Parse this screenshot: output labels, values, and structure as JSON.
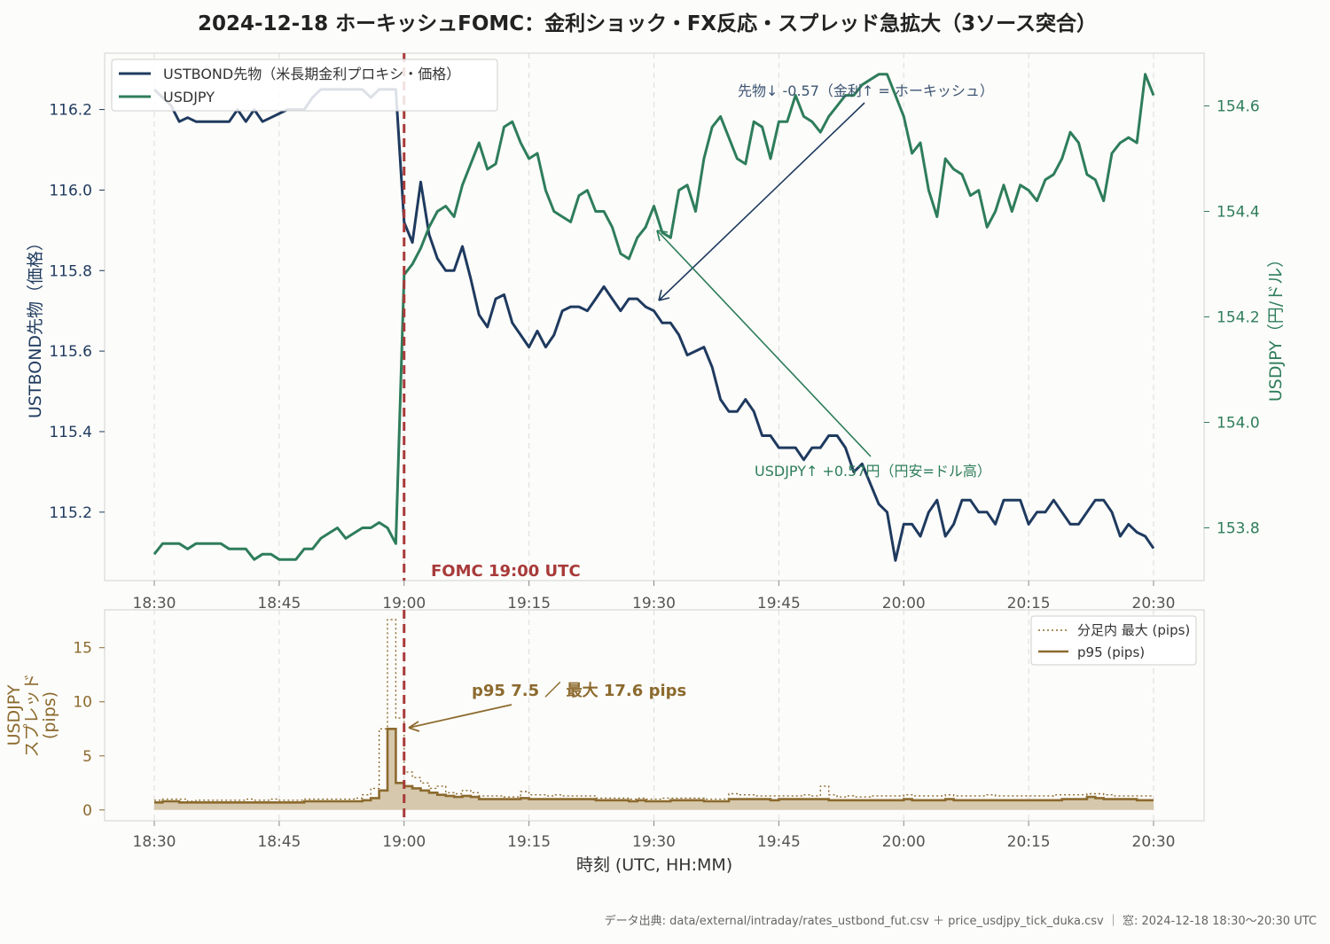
{
  "chart_data": {
    "title": "2024-12-18 ホーキッシュFOMC：金利ショック・FX反応・スプレッド急拡大（3ソース突合）",
    "source_note": "データ出典: data/external/intraday/rates_ustbond_fut.csv ＋ price_usdjpy_tick_duka.csv ｜ 窓: 2024-12-18 18:30〜20:30 UTC",
    "xlabel": "時刻 (UTC, HH:MM)",
    "x_ticks": [
      "18:30",
      "18:45",
      "19:00",
      "19:15",
      "19:30",
      "19:45",
      "20:00",
      "20:15",
      "20:30"
    ],
    "event": {
      "label": "FOMC 19:00 UTC",
      "time_minute": 30
    },
    "colors": {
      "bond": "#1f3a5f",
      "usdjpy": "#2e7d5b",
      "spread": "#8c6a2e",
      "spread_fill": "#d6c8ad",
      "event": "#a83a3a"
    },
    "top": {
      "type": "line",
      "ylabel_left": "USTBOND先物（価格）",
      "ylabel_right": "USDJPY（円/ドル）",
      "ylim_left": [
        115.03,
        116.34
      ],
      "ylim_right": [
        153.7,
        154.7
      ],
      "y_ticks_left": [
        "115.2",
        "115.4",
        "115.6",
        "115.8",
        "116.0",
        "116.2"
      ],
      "y_ticks_right": [
        "153.8",
        "154.0",
        "154.2",
        "154.4",
        "154.6"
      ],
      "legend": [
        "USTBOND先物（米長期金利プロキシ・価格）",
        "USDJPY"
      ],
      "annotations": {
        "bond": "先物↓ -0.57（金利↑ = ホーキッシュ）",
        "usdjpy": "USDJPY↑ +0.57円（円安=ドル高）"
      },
      "series": [
        {
          "name": "USTBOND先物（米長期金利プロキシ・価格）",
          "axis": "left",
          "x_minutes": [
            0,
            1,
            2,
            3,
            4,
            5,
            6,
            7,
            8,
            9,
            10,
            11,
            12,
            13,
            14,
            15,
            16,
            17,
            18,
            19,
            20,
            21,
            22,
            23,
            24,
            25,
            26,
            27,
            28,
            29,
            30,
            31,
            32,
            33,
            34,
            35,
            36,
            37,
            38,
            39,
            40,
            41,
            42,
            43,
            44,
            45,
            46,
            47,
            48,
            49,
            50,
            51,
            52,
            53,
            54,
            55,
            56,
            57,
            58,
            59,
            60,
            61,
            62,
            63,
            64,
            65,
            66,
            67,
            68,
            69,
            70,
            71,
            72,
            73,
            74,
            75,
            76,
            77,
            78,
            79,
            80,
            81,
            82,
            83,
            84,
            85,
            86,
            87,
            88,
            89,
            90,
            91,
            92,
            93,
            94,
            95,
            96,
            97,
            98,
            99,
            100,
            101,
            102,
            103,
            104,
            105,
            106,
            107,
            108,
            109,
            110,
            111,
            112,
            113,
            114,
            115,
            116,
            117,
            118,
            119,
            120
          ],
          "values": [
            116.25,
            116.23,
            116.21,
            116.17,
            116.18,
            116.17,
            116.17,
            116.17,
            116.17,
            116.17,
            116.2,
            116.17,
            116.2,
            116.17,
            116.18,
            116.19,
            116.2,
            116.2,
            116.2,
            116.23,
            116.25,
            116.25,
            116.25,
            116.25,
            116.25,
            116.25,
            116.23,
            116.25,
            116.25,
            116.25,
            115.92,
            115.87,
            116.02,
            115.89,
            115.83,
            115.8,
            115.8,
            115.86,
            115.78,
            115.69,
            115.66,
            115.73,
            115.74,
            115.67,
            115.64,
            115.61,
            115.65,
            115.61,
            115.64,
            115.7,
            115.71,
            115.71,
            115.7,
            115.73,
            115.76,
            115.73,
            115.7,
            115.73,
            115.73,
            115.71,
            115.7,
            115.67,
            115.67,
            115.64,
            115.59,
            115.6,
            115.61,
            115.56,
            115.48,
            115.45,
            115.45,
            115.48,
            115.45,
            115.39,
            115.39,
            115.36,
            115.36,
            115.36,
            115.33,
            115.36,
            115.36,
            115.39,
            115.39,
            115.36,
            115.3,
            115.32,
            115.27,
            115.22,
            115.2,
            115.08,
            115.17,
            115.17,
            115.14,
            115.2,
            115.23,
            115.14,
            115.17,
            115.23,
            115.23,
            115.2,
            115.2,
            115.17,
            115.23,
            115.23,
            115.23,
            115.17,
            115.2,
            115.2,
            115.23,
            115.2,
            115.17,
            115.17,
            115.2,
            115.23,
            115.23,
            115.2,
            115.14,
            115.17,
            115.15,
            115.14,
            115.11
          ]
        },
        {
          "name": "USDJPY",
          "axis": "right",
          "x_minutes": [
            0,
            1,
            2,
            3,
            4,
            5,
            6,
            7,
            8,
            9,
            10,
            11,
            12,
            13,
            14,
            15,
            16,
            17,
            18,
            19,
            20,
            21,
            22,
            23,
            24,
            25,
            26,
            27,
            28,
            29,
            30,
            31,
            32,
            33,
            34,
            35,
            36,
            37,
            38,
            39,
            40,
            41,
            42,
            43,
            44,
            45,
            46,
            47,
            48,
            49,
            50,
            51,
            52,
            53,
            54,
            55,
            56,
            57,
            58,
            59,
            60,
            61,
            62,
            63,
            64,
            65,
            66,
            67,
            68,
            69,
            70,
            71,
            72,
            73,
            74,
            75,
            76,
            77,
            78,
            79,
            80,
            81,
            82,
            83,
            84,
            85,
            86,
            87,
            88,
            89,
            90,
            91,
            92,
            93,
            94,
            95,
            96,
            97,
            98,
            99,
            100,
            101,
            102,
            103,
            104,
            105,
            106,
            107,
            108,
            109,
            110,
            111,
            112,
            113,
            114,
            115,
            116,
            117,
            118,
            119,
            120
          ],
          "values": [
            153.75,
            153.77,
            153.77,
            153.77,
            153.76,
            153.77,
            153.77,
            153.77,
            153.77,
            153.76,
            153.76,
            153.76,
            153.74,
            153.75,
            153.75,
            153.74,
            153.74,
            153.74,
            153.76,
            153.76,
            153.78,
            153.79,
            153.8,
            153.78,
            153.79,
            153.8,
            153.8,
            153.81,
            153.8,
            153.77,
            154.28,
            154.3,
            154.33,
            154.37,
            154.4,
            154.41,
            154.39,
            154.45,
            154.49,
            154.53,
            154.48,
            154.49,
            154.56,
            154.57,
            154.53,
            154.5,
            154.51,
            154.44,
            154.4,
            154.39,
            154.38,
            154.43,
            154.44,
            154.4,
            154.4,
            154.37,
            154.32,
            154.31,
            154.35,
            154.37,
            154.41,
            154.36,
            154.35,
            154.44,
            154.45,
            154.4,
            154.5,
            154.56,
            154.58,
            154.54,
            154.5,
            154.49,
            154.57,
            154.56,
            154.5,
            154.57,
            154.57,
            154.62,
            154.58,
            154.57,
            154.55,
            154.58,
            154.6,
            154.62,
            154.62,
            154.64,
            154.65,
            154.66,
            154.66,
            154.62,
            154.58,
            154.51,
            154.53,
            154.44,
            154.39,
            154.5,
            154.48,
            154.47,
            154.43,
            154.44,
            154.37,
            154.4,
            154.45,
            154.4,
            154.45,
            154.44,
            154.42,
            154.46,
            154.47,
            154.5,
            154.55,
            154.53,
            154.47,
            154.46,
            154.42,
            154.51,
            154.53,
            154.54,
            154.53,
            154.66,
            154.62
          ]
        }
      ]
    },
    "bottom": {
      "type": "step-area",
      "ylabel": "USDJPY\nスプレッド\n(pips)",
      "ylim": [
        -1,
        18.5
      ],
      "y_ticks": [
        "0",
        "5",
        "10",
        "15"
      ],
      "legend": [
        "分足内 最大 (pips)",
        "p95 (pips)"
      ],
      "annotation": "p95 7.5 ／ 最大 17.6 pips",
      "series": [
        {
          "name": "分足内 最大 (pips)",
          "style": "dotted",
          "x_minutes": [
            0,
            1,
            2,
            3,
            4,
            5,
            6,
            7,
            8,
            9,
            10,
            11,
            12,
            13,
            14,
            15,
            16,
            17,
            18,
            19,
            20,
            21,
            22,
            23,
            24,
            25,
            26,
            27,
            28,
            29,
            30,
            31,
            32,
            33,
            34,
            35,
            36,
            37,
            38,
            39,
            40,
            41,
            42,
            43,
            44,
            45,
            46,
            47,
            48,
            49,
            50,
            51,
            52,
            53,
            54,
            55,
            56,
            57,
            58,
            59,
            60,
            61,
            62,
            63,
            64,
            65,
            66,
            67,
            68,
            69,
            70,
            71,
            72,
            73,
            74,
            75,
            76,
            77,
            78,
            79,
            80,
            81,
            82,
            83,
            84,
            85,
            86,
            87,
            88,
            89,
            90,
            91,
            92,
            93,
            94,
            95,
            96,
            97,
            98,
            99,
            100,
            101,
            102,
            103,
            104,
            105,
            106,
            107,
            108,
            109,
            110,
            111,
            112,
            113,
            114,
            115,
            116,
            117,
            118,
            119,
            120
          ],
          "values": [
            0.9,
            1.0,
            1.0,
            1.0,
            0.8,
            0.9,
            0.9,
            0.9,
            0.9,
            0.9,
            0.9,
            1.0,
            0.9,
            0.9,
            1.0,
            0.9,
            0.9,
            0.9,
            1.0,
            1.0,
            1.0,
            1.0,
            1.0,
            1.0,
            1.1,
            1.4,
            2.0,
            7.5,
            17.6,
            8.5,
            3.5,
            3.0,
            2.5,
            2.0,
            2.2,
            1.6,
            1.5,
            1.8,
            1.6,
            1.3,
            1.3,
            1.3,
            1.2,
            1.2,
            1.7,
            1.4,
            1.4,
            1.3,
            1.4,
            1.3,
            1.3,
            1.3,
            1.3,
            1.1,
            1.1,
            1.1,
            1.1,
            1.0,
            1.1,
            1.0,
            1.0,
            1.1,
            1.1,
            1.1,
            1.1,
            1.1,
            1.0,
            1.0,
            1.0,
            1.5,
            1.4,
            1.4,
            1.3,
            1.3,
            1.3,
            1.3,
            1.3,
            1.3,
            1.4,
            1.3,
            2.2,
            1.4,
            1.2,
            1.3,
            1.2,
            1.2,
            1.3,
            1.3,
            1.3,
            1.3,
            1.4,
            1.3,
            1.3,
            1.3,
            1.3,
            1.4,
            1.3,
            1.3,
            1.3,
            1.3,
            1.4,
            1.3,
            1.3,
            1.3,
            1.3,
            1.3,
            1.3,
            1.3,
            1.4,
            1.4,
            1.4,
            1.4,
            1.5,
            1.5,
            1.4,
            1.3,
            1.3,
            1.3,
            1.3,
            1.3,
            1.3
          ]
        },
        {
          "name": "p95 (pips)",
          "style": "solid",
          "x_minutes": [
            0,
            1,
            2,
            3,
            4,
            5,
            6,
            7,
            8,
            9,
            10,
            11,
            12,
            13,
            14,
            15,
            16,
            17,
            18,
            19,
            20,
            21,
            22,
            23,
            24,
            25,
            26,
            27,
            28,
            29,
            30,
            31,
            32,
            33,
            34,
            35,
            36,
            37,
            38,
            39,
            40,
            41,
            42,
            43,
            44,
            45,
            46,
            47,
            48,
            49,
            50,
            51,
            52,
            53,
            54,
            55,
            56,
            57,
            58,
            59,
            60,
            61,
            62,
            63,
            64,
            65,
            66,
            67,
            68,
            69,
            70,
            71,
            72,
            73,
            74,
            75,
            76,
            77,
            78,
            79,
            80,
            81,
            82,
            83,
            84,
            85,
            86,
            87,
            88,
            89,
            90,
            91,
            92,
            93,
            94,
            95,
            96,
            97,
            98,
            99,
            100,
            101,
            102,
            103,
            104,
            105,
            106,
            107,
            108,
            109,
            110,
            111,
            112,
            113,
            114,
            115,
            116,
            117,
            118,
            119,
            120
          ],
          "values": [
            0.7,
            0.8,
            0.8,
            0.7,
            0.7,
            0.7,
            0.7,
            0.7,
            0.7,
            0.7,
            0.7,
            0.7,
            0.7,
            0.7,
            0.7,
            0.7,
            0.7,
            0.7,
            0.8,
            0.8,
            0.8,
            0.8,
            0.8,
            0.8,
            0.8,
            0.9,
            1.1,
            1.8,
            7.5,
            2.5,
            2.2,
            2.0,
            1.8,
            1.6,
            1.4,
            1.3,
            1.2,
            1.3,
            1.2,
            1.0,
            1.0,
            1.0,
            1.0,
            1.0,
            1.1,
            1.0,
            1.0,
            1.0,
            1.0,
            1.0,
            1.0,
            1.0,
            1.0,
            0.9,
            0.9,
            0.9,
            0.9,
            0.8,
            0.9,
            0.8,
            0.8,
            0.8,
            0.9,
            0.9,
            0.9,
            0.9,
            0.8,
            0.8,
            0.8,
            1.0,
            1.0,
            1.0,
            1.0,
            1.0,
            0.9,
            1.0,
            1.0,
            1.0,
            1.0,
            1.0,
            1.0,
            0.9,
            0.9,
            0.9,
            0.9,
            0.9,
            0.9,
            0.9,
            0.9,
            0.9,
            1.0,
            0.9,
            0.9,
            0.9,
            0.9,
            1.0,
            0.9,
            0.9,
            0.9,
            0.9,
            0.9,
            0.9,
            0.9,
            0.9,
            0.9,
            0.9,
            0.9,
            0.9,
            0.9,
            1.0,
            1.0,
            1.0,
            1.2,
            1.1,
            1.0,
            1.0,
            1.0,
            1.0,
            0.9,
            0.9,
            0.9
          ]
        }
      ]
    }
  }
}
